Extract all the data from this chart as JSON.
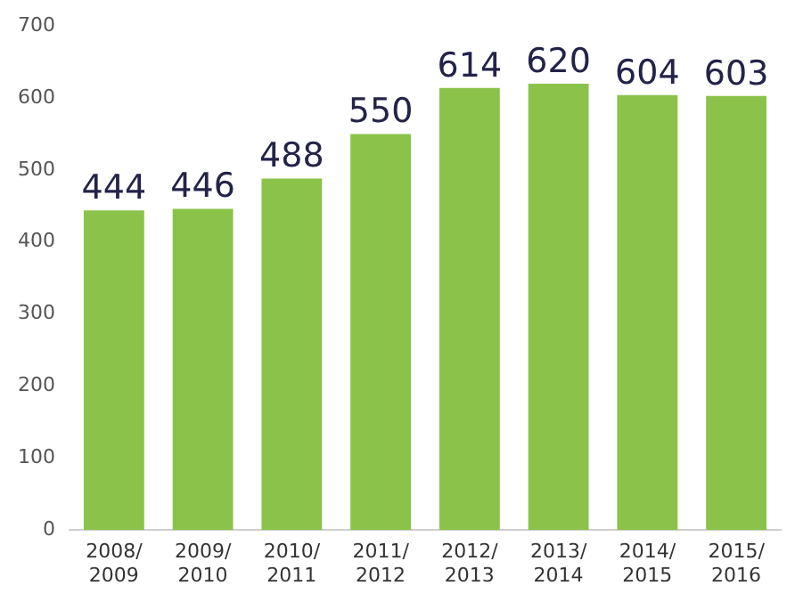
{
  "chart_data": {
    "type": "bar",
    "categories": [
      "2008/\n2009",
      "2009/\n2010",
      "2010/\n2011",
      "2011/\n2012",
      "2012/\n2013",
      "2013/\n2014",
      "2014/\n2015",
      "2015/\n2016"
    ],
    "values": [
      444,
      446,
      488,
      550,
      614,
      620,
      604,
      603
    ],
    "color": "#8bc34a",
    "ylim": [
      0,
      700
    ],
    "yticks": [
      0,
      100,
      200,
      300,
      400,
      500,
      600,
      700
    ],
    "grid": false,
    "data_labels": true
  }
}
